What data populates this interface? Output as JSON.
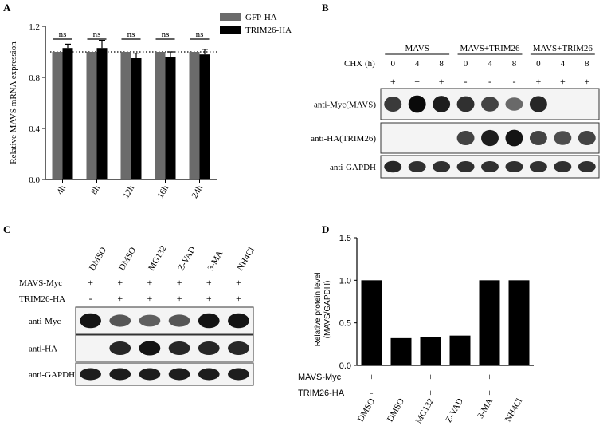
{
  "panels": {
    "A": {
      "letter": "A",
      "chart_data": {
        "type": "bar",
        "ylabel": "Relative MAVS mRNA expression",
        "ylim": [
          0.0,
          1.2
        ],
        "yticks": [
          "0.0",
          "0.4",
          "0.8",
          "1.2"
        ],
        "categories": [
          "4h",
          "8h",
          "12h",
          "16h",
          "24h"
        ],
        "series": [
          {
            "name": "GFP-HA",
            "values": [
              1.0,
              1.0,
              1.0,
              1.0,
              1.0
            ],
            "errors": [
              0,
              0,
              0,
              0,
              0
            ],
            "color": "#6b6b6b"
          },
          {
            "name": "TRIM26-HA",
            "values": [
              1.03,
              1.03,
              0.95,
              0.96,
              0.98
            ],
            "errors": [
              0.03,
              0.06,
              0.04,
              0.04,
              0.04
            ],
            "color": "#000000"
          }
        ],
        "reference_line": 1.0,
        "annotations": [
          "ns",
          "ns",
          "ns",
          "ns",
          "ns"
        ],
        "legend": "top-right"
      }
    },
    "B": {
      "letter": "B",
      "groups": [
        "MAVS",
        "MAVS+TRIM26",
        "MAVS+TRIM26"
      ],
      "chx_label": "CHX (h)",
      "chx_values": [
        "0",
        "4",
        "8",
        "0",
        "4",
        "8",
        "0",
        "4",
        "8"
      ],
      "treatment": [
        "+",
        "+",
        "+",
        "-",
        "-",
        "-",
        "+",
        "+",
        "+"
      ],
      "blots": [
        {
          "label": "anti-Myc(MAVS)",
          "intensities": [
            0.75,
            1.0,
            0.9,
            0.8,
            0.7,
            0.5,
            0.85,
            0.0,
            0.0
          ]
        },
        {
          "label": "anti-HA(TRIM26)",
          "intensities": [
            0.0,
            0.0,
            0.0,
            0.7,
            0.9,
            0.95,
            0.7,
            0.65,
            0.7
          ]
        },
        {
          "label": "anti-GAPDH",
          "intensities": [
            0.85,
            0.8,
            0.8,
            0.8,
            0.8,
            0.8,
            0.8,
            0.8,
            0.8
          ]
        }
      ]
    },
    "C": {
      "letter": "C",
      "lanes": [
        "DMSO",
        "DMSO",
        "MG132",
        "Z-VAD",
        "3-MA",
        "NH4Cl"
      ],
      "rows": [
        {
          "label": "MAVS-Myc",
          "values": [
            "+",
            "+",
            "+",
            "+",
            "+",
            "+"
          ]
        },
        {
          "label": "TRIM26-HA",
          "values": [
            "-",
            "+",
            "+",
            "+",
            "+",
            "+"
          ]
        }
      ],
      "blots": [
        {
          "label": "anti-Myc",
          "intensities": [
            0.95,
            0.6,
            0.55,
            0.6,
            0.95,
            0.95
          ]
        },
        {
          "label": "anti-HA",
          "intensities": [
            0.0,
            0.85,
            0.95,
            0.85,
            0.85,
            0.85
          ]
        },
        {
          "label": "anti-GAPDH",
          "intensities": [
            0.9,
            0.9,
            0.9,
            0.9,
            0.9,
            0.9
          ]
        }
      ]
    },
    "D": {
      "letter": "D",
      "chart_data": {
        "type": "bar",
        "ylabel_line1": "Relative protein level",
        "ylabel_line2": "(MAVS/GAPDH)",
        "ylim": [
          0.0,
          1.5
        ],
        "yticks": [
          "0.0",
          "0.5",
          "1.0",
          "1.5"
        ],
        "categories": [
          "DMSO",
          "DMSO",
          "MG132",
          "Z-VAD",
          "3-MA",
          "NH4Cl"
        ],
        "values": [
          1.0,
          0.32,
          0.33,
          0.35,
          1.0,
          1.0
        ],
        "color": "#000000",
        "rows": [
          {
            "label": "MAVS-Myc",
            "values": [
              "+",
              "+",
              "+",
              "+",
              "+",
              "+"
            ]
          },
          {
            "label": "TRIM26-HA",
            "values": [
              "-",
              "+",
              "+",
              "+",
              "+",
              "+"
            ]
          }
        ]
      }
    }
  }
}
